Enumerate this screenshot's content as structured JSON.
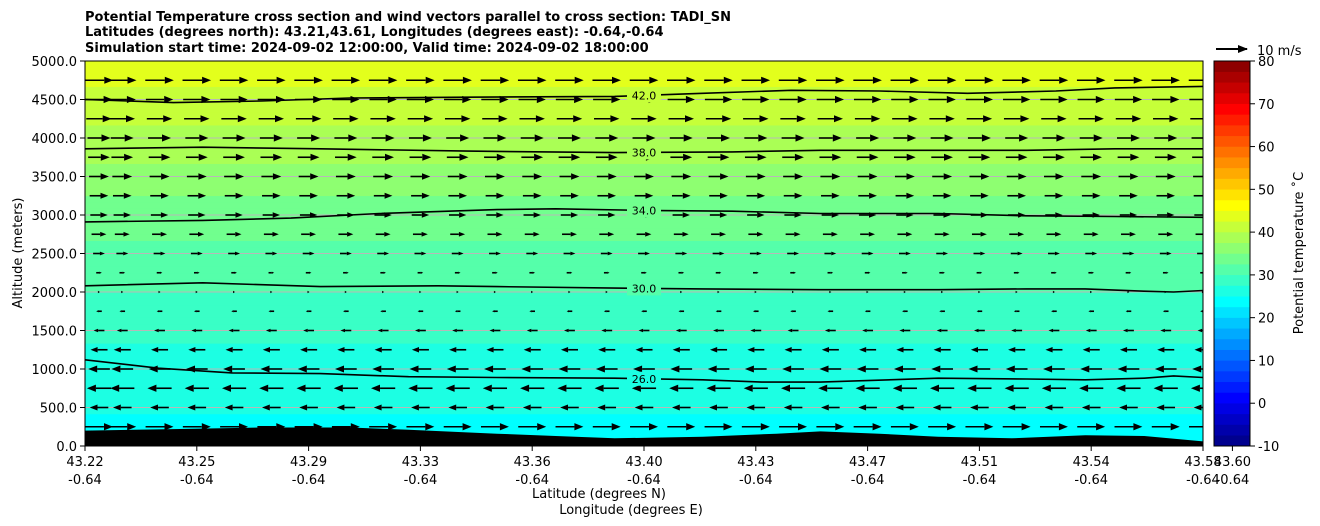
{
  "chart_data": {
    "type": "heatmap",
    "title": [
      "Potential Temperature cross section and wind vectors parallel to cross section: TADI_SN",
      "Latitudes (degrees north): 43.21,43.61, Longitudes (degrees east): -0.64,-0.64",
      "Simulation start time: 2024-09-02 12:00:00, Valid time: 2024-09-02 18:00:00"
    ],
    "xlabel": "Latitude (degrees N)",
    "xlabel2": "Longitude (degrees E)",
    "ylabel": "Altitude (meters)",
    "xlim": [
      43.22,
      43.6
    ],
    "ylim": [
      0,
      5000
    ],
    "x_ticks": [
      {
        "lat": "43.22",
        "lon": "-0.64",
        "value": 43.22
      },
      {
        "lat": "43.25",
        "lon": "-0.64",
        "value": 43.258
      },
      {
        "lat": "43.29",
        "lon": "-0.64",
        "value": 43.296
      },
      {
        "lat": "43.33",
        "lon": "-0.64",
        "value": 43.334
      },
      {
        "lat": "43.36",
        "lon": "-0.64",
        "value": 43.372
      },
      {
        "lat": "43.40",
        "lon": "-0.64",
        "value": 43.41
      },
      {
        "lat": "43.43",
        "lon": "-0.64",
        "value": 43.448
      },
      {
        "lat": "43.47",
        "lon": "-0.64",
        "value": 43.486
      },
      {
        "lat": "43.51",
        "lon": "-0.64",
        "value": 43.524
      },
      {
        "lat": "43.54",
        "lon": "-0.64",
        "value": 43.562
      },
      {
        "lat": "43.58",
        "lon": "-0.64",
        "value": 43.6
      },
      {
        "lat": "43.60",
        "lon": "-0.64",
        "value": 43.61
      }
    ],
    "y_ticks": [
      "0.0",
      "500.0",
      "1000.0",
      "1500.0",
      "2000.0",
      "2500.0",
      "3000.0",
      "3500.0",
      "4000.0",
      "4500.0",
      "5000.0"
    ],
    "y_tick_values": [
      0,
      500,
      1000,
      1500,
      2000,
      2500,
      3000,
      3500,
      4000,
      4500,
      5000
    ],
    "grid": "horizontal",
    "colorbar": {
      "label": "Potential temperature $^\\circ$C",
      "label_text": "Potential temperature ˚C",
      "min": -10,
      "max": 80,
      "ticks": [
        "-10",
        "0",
        "10",
        "20",
        "30",
        "40",
        "50",
        "60",
        "70",
        "80"
      ],
      "tick_values": [
        -10,
        0,
        10,
        20,
        30,
        40,
        50,
        60,
        70,
        80
      ],
      "colormap": "jet"
    },
    "field_by_altitude": [
      {
        "alt": 0,
        "theta": 24
      },
      {
        "alt": 500,
        "theta": 25.2
      },
      {
        "alt": 1000,
        "theta": 26.4
      },
      {
        "alt": 1500,
        "theta": 28.2
      },
      {
        "alt": 2000,
        "theta": 30
      },
      {
        "alt": 2500,
        "theta": 31.9
      },
      {
        "alt": 3000,
        "theta": 33.9
      },
      {
        "alt": 3500,
        "theta": 36.4
      },
      {
        "alt": 4000,
        "theta": 39.2
      },
      {
        "alt": 4500,
        "theta": 41.8
      },
      {
        "alt": 5000,
        "theta": 43.8
      }
    ],
    "contours": [
      {
        "label": "26.0",
        "level": 26,
        "label_x": 43.41,
        "points": [
          [
            43.22,
            1120
          ],
          [
            43.245,
            1010
          ],
          [
            43.27,
            950
          ],
          [
            43.3,
            940
          ],
          [
            43.33,
            900
          ],
          [
            43.36,
            890
          ],
          [
            43.4,
            880
          ],
          [
            43.43,
            860
          ],
          [
            43.45,
            830
          ],
          [
            43.47,
            830
          ],
          [
            43.51,
            880
          ],
          [
            43.54,
            870
          ],
          [
            43.56,
            860
          ],
          [
            43.58,
            880
          ],
          [
            43.59,
            910
          ],
          [
            43.6,
            890
          ]
        ]
      },
      {
        "label": "30.0",
        "level": 30,
        "label_x": 43.41,
        "points": [
          [
            43.22,
            2080
          ],
          [
            43.26,
            2120
          ],
          [
            43.3,
            2070
          ],
          [
            43.34,
            2080
          ],
          [
            43.36,
            2070
          ],
          [
            43.4,
            2050
          ],
          [
            43.43,
            2040
          ],
          [
            43.47,
            2030
          ],
          [
            43.51,
            2030
          ],
          [
            43.54,
            2040
          ],
          [
            43.56,
            2040
          ],
          [
            43.58,
            2010
          ],
          [
            43.59,
            2000
          ],
          [
            43.6,
            2020
          ]
        ]
      },
      {
        "label": "34.0",
        "level": 34,
        "label_x": 43.41,
        "points": [
          [
            43.22,
            2910
          ],
          [
            43.26,
            2930
          ],
          [
            43.29,
            2960
          ],
          [
            43.32,
            3020
          ],
          [
            43.36,
            3070
          ],
          [
            43.38,
            3080
          ],
          [
            43.41,
            3060
          ],
          [
            43.44,
            3050
          ],
          [
            43.47,
            3020
          ],
          [
            43.51,
            3020
          ],
          [
            43.54,
            2990
          ],
          [
            43.57,
            2980
          ],
          [
            43.6,
            2970
          ]
        ]
      },
      {
        "label": "38.0",
        "level": 38,
        "label_x": 43.41,
        "points": [
          [
            43.22,
            3860
          ],
          [
            43.26,
            3880
          ],
          [
            43.3,
            3860
          ],
          [
            43.35,
            3830
          ],
          [
            43.4,
            3810
          ],
          [
            43.44,
            3820
          ],
          [
            43.47,
            3840
          ],
          [
            43.51,
            3840
          ],
          [
            43.54,
            3840
          ],
          [
            43.57,
            3860
          ],
          [
            43.6,
            3860
          ]
        ]
      },
      {
        "label": "42.0",
        "level": 42,
        "label_x": 43.41,
        "points": [
          [
            43.22,
            4500
          ],
          [
            43.25,
            4460
          ],
          [
            43.28,
            4480
          ],
          [
            43.31,
            4520
          ],
          [
            43.35,
            4530
          ],
          [
            43.4,
            4540
          ],
          [
            43.43,
            4580
          ],
          [
            43.46,
            4620
          ],
          [
            43.49,
            4610
          ],
          [
            43.52,
            4580
          ],
          [
            43.55,
            4610
          ],
          [
            43.57,
            4650
          ],
          [
            43.6,
            4670
          ]
        ]
      }
    ],
    "terrain": [
      [
        43.22,
        200
      ],
      [
        43.25,
        220
      ],
      [
        43.28,
        240
      ],
      [
        43.31,
        240
      ],
      [
        43.33,
        210
      ],
      [
        43.36,
        160
      ],
      [
        43.38,
        130
      ],
      [
        43.4,
        100
      ],
      [
        43.43,
        120
      ],
      [
        43.455,
        160
      ],
      [
        43.47,
        190
      ],
      [
        43.49,
        160
      ],
      [
        43.51,
        120
      ],
      [
        43.535,
        100
      ],
      [
        43.56,
        140
      ],
      [
        43.58,
        130
      ],
      [
        43.6,
        60
      ]
    ],
    "wind_vectors": {
      "reference": {
        "label": "10 m/s",
        "speed": 10
      },
      "columns": 31,
      "by_altitude": [
        {
          "alt": 250,
          "u": 9.0
        },
        {
          "alt": 500,
          "u": -6.0
        },
        {
          "alt": 750,
          "u": -7.8
        },
        {
          "alt": 1000,
          "u": -7.0
        },
        {
          "alt": 1250,
          "u": -5.5
        },
        {
          "alt": 1500,
          "u": -3.5
        },
        {
          "alt": 1750,
          "u": -1.8
        },
        {
          "alt": 2000,
          "u": 0.6
        },
        {
          "alt": 2250,
          "u": 1.8
        },
        {
          "alt": 2500,
          "u": 3.8
        },
        {
          "alt": 2750,
          "u": 4.8
        },
        {
          "alt": 3000,
          "u": 5.6
        },
        {
          "alt": 3250,
          "u": 6.0
        },
        {
          "alt": 3500,
          "u": 6.4
        },
        {
          "alt": 3750,
          "u": 7.0
        },
        {
          "alt": 4000,
          "u": 7.4
        },
        {
          "alt": 4250,
          "u": 8.2
        },
        {
          "alt": 4500,
          "u": 8.8
        },
        {
          "alt": 4750,
          "u": 9.2
        }
      ]
    }
  }
}
